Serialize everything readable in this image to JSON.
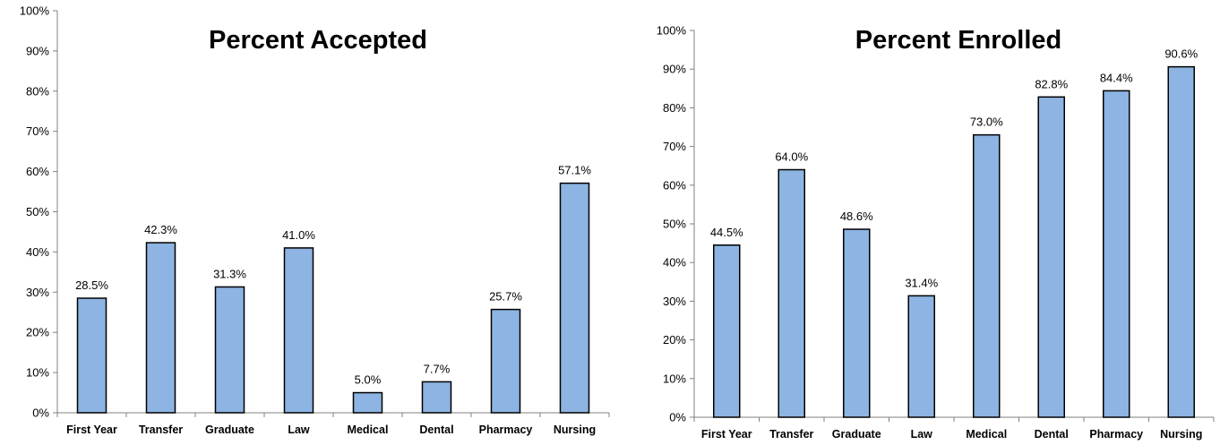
{
  "chart_data": [
    {
      "type": "bar",
      "title": "Percent Accepted",
      "categories": [
        "First Year",
        "Transfer",
        "Graduate",
        "Law",
        "Medical",
        "Dental",
        "Pharmacy",
        "Nursing"
      ],
      "values": [
        28.5,
        42.3,
        31.3,
        41.0,
        5.0,
        7.7,
        25.7,
        57.1
      ],
      "data_labels": [
        "28.5%",
        "42.3%",
        "31.3%",
        "41.0%",
        "5.0%",
        "7.7%",
        "25.7%",
        "57.1%"
      ],
      "ylim": [
        0,
        100
      ],
      "yticks": [
        "0%",
        "10%",
        "20%",
        "30%",
        "40%",
        "50%",
        "60%",
        "70%",
        "80%",
        "90%",
        "100%"
      ],
      "xlabel": "",
      "ylabel": "",
      "grid": false,
      "colors": {
        "bar": "#8db4e2"
      }
    },
    {
      "type": "bar",
      "title": "Percent Enrolled",
      "categories": [
        "First Year",
        "Transfer",
        "Graduate",
        "Law",
        "Medical",
        "Dental",
        "Pharmacy",
        "Nursing"
      ],
      "values": [
        44.5,
        64.0,
        48.6,
        31.4,
        73.0,
        82.8,
        84.4,
        90.6
      ],
      "data_labels": [
        "44.5%",
        "64.0%",
        "48.6%",
        "31.4%",
        "73.0%",
        "82.8%",
        "84.4%",
        "90.6%"
      ],
      "ylim": [
        0,
        100
      ],
      "yticks": [
        "0%",
        "10%",
        "20%",
        "30%",
        "40%",
        "50%",
        "60%",
        "70%",
        "80%",
        "90%",
        "100%"
      ],
      "xlabel": "",
      "ylabel": "",
      "grid": false,
      "colors": {
        "bar": "#8db4e2"
      }
    }
  ]
}
